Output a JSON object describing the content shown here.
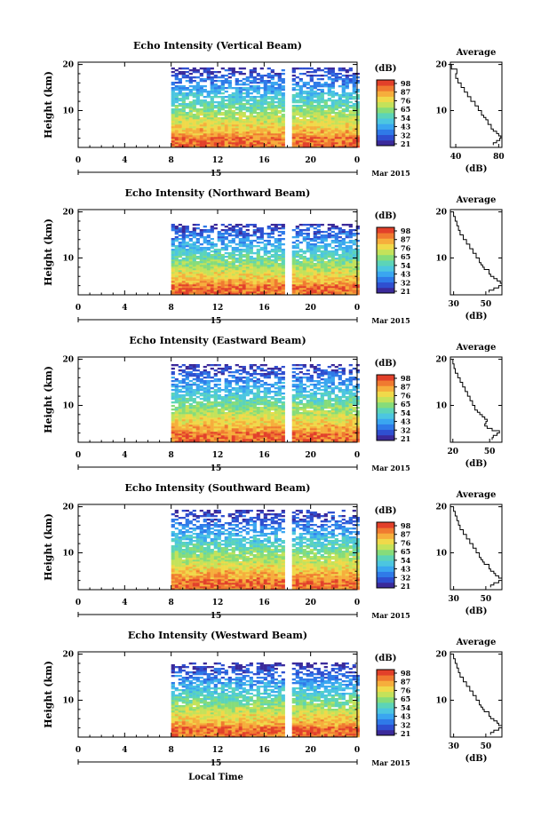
{
  "colors": {
    "colormap": [
      "#3b2a9a",
      "#2f4fd0",
      "#2f7ae8",
      "#3aa6f0",
      "#4cc6e0",
      "#5cd4b8",
      "#86dc7a",
      "#c4e25a",
      "#f0d94a",
      "#f6ae3c",
      "#f07a30",
      "#e2402a"
    ],
    "nodata": "#ffffff",
    "line": "#000000"
  },
  "xaxis": {
    "ticks": [
      "0",
      "4",
      "8",
      "12",
      "16",
      "20",
      "0"
    ],
    "date_day": "15",
    "date_suffix": "Mar 2015",
    "label": "Local Time"
  },
  "colorbar": {
    "unit": "(dB)",
    "ticks": [
      "98",
      "87",
      "76",
      "65",
      "54",
      "43",
      "32",
      "21"
    ]
  },
  "chart_data": [
    {
      "type": "heatmap",
      "title": "Echo Intensity (Vertical Beam)",
      "xlabel": "Local Time",
      "ylabel": "Height (km)",
      "xlim": [
        0,
        24
      ],
      "ylim": [
        2,
        20.5
      ],
      "yticks": [
        "20",
        "10"
      ],
      "data_start_hour": 8,
      "gap_hours": [
        17.8,
        18.3
      ],
      "clim": [
        21,
        98
      ],
      "echo_top_km": 19.5
    },
    {
      "type": "heatmap",
      "title": "Echo Intensity (Northward Beam)",
      "xlabel": "Local Time",
      "ylabel": "Height (km)",
      "xlim": [
        0,
        24
      ],
      "ylim": [
        2,
        20.5
      ],
      "yticks": [
        "20",
        "10"
      ],
      "data_start_hour": 8,
      "gap_hours": [
        17.8,
        18.3
      ],
      "clim": [
        21,
        98
      ],
      "echo_top_km": 17.5
    },
    {
      "type": "heatmap",
      "title": "Echo Intensity (Eastward Beam)",
      "xlabel": "Local Time",
      "ylabel": "Height (km)",
      "xlim": [
        0,
        24
      ],
      "ylim": [
        2,
        20.5
      ],
      "yticks": [
        "20",
        "10"
      ],
      "data_start_hour": 8,
      "gap_hours": [
        17.8,
        18.3
      ],
      "clim": [
        21,
        98
      ],
      "echo_top_km": 19.0
    },
    {
      "type": "heatmap",
      "title": "Echo Intensity (Southward Beam)",
      "xlabel": "Local Time",
      "ylabel": "Height (km)",
      "xlim": [
        0,
        24
      ],
      "ylim": [
        2,
        20.5
      ],
      "yticks": [
        "20",
        "10"
      ],
      "data_start_hour": 8,
      "gap_hours": [
        17.8,
        18.3
      ],
      "clim": [
        21,
        98
      ],
      "echo_top_km": 19.3
    },
    {
      "type": "heatmap",
      "title": "Echo Intensity (Westward Beam)",
      "xlabel": "Local Time",
      "ylabel": "Height (km)",
      "xlim": [
        0,
        24
      ],
      "ylim": [
        2,
        20.5
      ],
      "yticks": [
        "20",
        "10"
      ],
      "data_start_hour": 8,
      "gap_hours": [
        17.8,
        18.3
      ],
      "clim": [
        21,
        98
      ],
      "echo_top_km": 18.0
    },
    {
      "type": "line",
      "title": "Average",
      "xlabel": "(dB)",
      "ylim": [
        2,
        20.5
      ],
      "xlim": [
        35,
        83
      ],
      "xticks": [
        "40",
        "80"
      ],
      "yticks": [
        "20",
        "10"
      ],
      "x": [
        33,
        36,
        41,
        40,
        42,
        45,
        48,
        51,
        54,
        58,
        61,
        64,
        66,
        68,
        70,
        70,
        73,
        73,
        75,
        78,
        80,
        82,
        81,
        78,
        75
      ],
      "y": [
        20,
        19,
        18,
        17,
        16,
        15,
        14,
        13,
        12,
        11,
        10,
        9,
        8.5,
        8,
        7.5,
        7,
        6.5,
        6,
        5.5,
        5,
        4.5,
        4,
        3.5,
        3,
        2.5
      ]
    },
    {
      "type": "line",
      "title": "Average",
      "xlabel": "(dB)",
      "ylim": [
        2,
        20.5
      ],
      "xlim": [
        28,
        60
      ],
      "xticks": [
        "30",
        "50"
      ],
      "yticks": [
        "20",
        "10"
      ],
      "x": [
        30,
        30,
        31,
        32,
        33,
        34,
        36,
        38,
        40,
        42,
        44,
        46,
        47,
        48,
        49,
        52,
        52,
        53,
        55,
        57,
        59,
        60,
        58,
        55,
        52
      ],
      "y": [
        20,
        19,
        18,
        17,
        16,
        15,
        14,
        13,
        12,
        11,
        10,
        9,
        8.5,
        8,
        7.5,
        7,
        6.5,
        6,
        5.5,
        5,
        4.5,
        4,
        3.5,
        3,
        2.5
      ]
    },
    {
      "type": "line",
      "title": "Average",
      "xlabel": "(dB)",
      "ylim": [
        2,
        20.5
      ],
      "xlim": [
        18,
        60
      ],
      "xticks": [
        "20",
        "50"
      ],
      "yticks": [
        "20",
        "10"
      ],
      "x": [
        20,
        20,
        21,
        22,
        24,
        26,
        28,
        30,
        32,
        34,
        36,
        38,
        40,
        42,
        44,
        46,
        48,
        47,
        46,
        48,
        52,
        58,
        56,
        53,
        52
      ],
      "y": [
        20,
        19,
        18,
        17,
        16,
        15,
        14,
        13,
        12,
        11,
        10,
        9,
        8.5,
        8,
        7.5,
        7,
        6.5,
        6,
        5.5,
        5,
        4.5,
        4,
        3.5,
        3,
        2.5
      ]
    },
    {
      "type": "line",
      "title": "Average",
      "xlabel": "(dB)",
      "ylim": [
        2,
        20.5
      ],
      "xlim": [
        28,
        60
      ],
      "xticks": [
        "30",
        "50"
      ],
      "yticks": [
        "20",
        "10"
      ],
      "x": [
        30,
        30,
        31,
        32,
        33,
        34,
        36,
        38,
        40,
        42,
        44,
        46,
        47,
        48,
        49,
        52,
        52,
        53,
        55,
        56,
        58,
        60,
        58,
        55,
        53
      ],
      "y": [
        20,
        19,
        18,
        17,
        16,
        15,
        14,
        13,
        12,
        11,
        10,
        9,
        8.5,
        8,
        7.5,
        7,
        6.5,
        6,
        5.5,
        5,
        4.5,
        4,
        3.5,
        3,
        2.5
      ]
    },
    {
      "type": "line",
      "title": "Average",
      "xlabel": "(dB)",
      "ylim": [
        2,
        20.5
      ],
      "xlim": [
        28,
        60
      ],
      "xticks": [
        "30",
        "50"
      ],
      "yticks": [
        "20",
        "10"
      ],
      "x": [
        30,
        30,
        31,
        32,
        33,
        34,
        36,
        38,
        40,
        42,
        44,
        46,
        47,
        48,
        49,
        52,
        52,
        53,
        55,
        57,
        58,
        60,
        58,
        55,
        53
      ],
      "y": [
        20,
        19,
        18,
        17,
        16,
        15,
        14,
        13,
        12,
        11,
        10,
        9,
        8.5,
        8,
        7.5,
        7,
        6.5,
        6,
        5.5,
        5,
        4.5,
        4,
        3.5,
        3,
        2.5
      ]
    }
  ]
}
